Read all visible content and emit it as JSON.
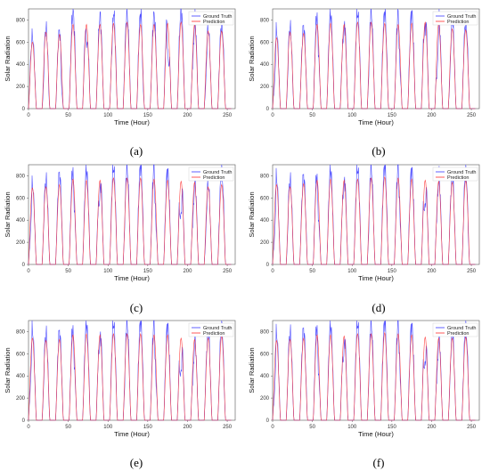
{
  "colors": {
    "ground_truth": "#3b3bff",
    "prediction": "#ff3030",
    "axes": "#555555"
  },
  "chart_data": [
    {
      "type": "line",
      "caption": "(a)",
      "xlabel": "Time (Hour)",
      "ylabel": "Solar Radiation",
      "xlim": [
        0,
        260
      ],
      "ylim": [
        0,
        900
      ],
      "xticks": [
        "0",
        "50",
        "100",
        "150",
        "200",
        "250"
      ],
      "yticks": [
        "0",
        "200",
        "400",
        "600",
        "800"
      ],
      "legend": {
        "placement": "top-right",
        "entries": [
          "Ground Truth",
          "Prediction"
        ]
      },
      "series": [
        {
          "name": "Ground Truth",
          "peaks": [
            650,
            720,
            700,
            880,
            860,
            830,
            880,
            870,
            860,
            840,
            880,
            900,
            860,
            720,
            780
          ],
          "dips": [
            0,
            0.45,
            0.55,
            0,
            0.3,
            0,
            0.2,
            0,
            0.4,
            0,
            0.5,
            0,
            0.3,
            0.4,
            0
          ]
        },
        {
          "name": "Prediction",
          "peaks": [
            600,
            690,
            670,
            760,
            760,
            760,
            770,
            780,
            760,
            760,
            770,
            780,
            760,
            700,
            700
          ]
        }
      ]
    },
    {
      "type": "line",
      "caption": "(b)",
      "xlabel": "Time (Hour)",
      "ylabel": "Solar Radiation",
      "xlim": [
        0,
        260
      ],
      "ylim": [
        0,
        900
      ],
      "xticks": [
        "0",
        "50",
        "100",
        "150",
        "200",
        "250"
      ],
      "yticks": [
        "0",
        "200",
        "400",
        "600",
        "800"
      ],
      "legend": {
        "placement": "top-right",
        "entries": [
          "Ground Truth",
          "Prediction"
        ]
      },
      "series": [
        {
          "name": "Ground Truth",
          "peaks": [
            700,
            730,
            740,
            870,
            860,
            850,
            870,
            880,
            880,
            860,
            870,
            900,
            860,
            800,
            800
          ],
          "dips": [
            0.5,
            0.3,
            0,
            0.3,
            0,
            0.2,
            0,
            0.3,
            0,
            0.4,
            0,
            0.2,
            0.5,
            0.3,
            0
          ]
        },
        {
          "name": "Prediction",
          "peaks": [
            640,
            690,
            680,
            760,
            770,
            760,
            780,
            780,
            770,
            760,
            770,
            780,
            770,
            720,
            710
          ]
        }
      ]
    },
    {
      "type": "line",
      "caption": "(c)",
      "xlabel": "Time (Hour)",
      "ylabel": "Solar Radiation",
      "xlim": [
        0,
        260
      ],
      "ylim": [
        0,
        900
      ],
      "xticks": [
        "0",
        "50",
        "100",
        "150",
        "200",
        "250"
      ],
      "yticks": [
        "0",
        "200",
        "400",
        "600",
        "800"
      ],
      "legend": {
        "placement": "top-right",
        "entries": [
          "Ground Truth",
          "Prediction"
        ]
      },
      "series": [
        {
          "name": "Ground Truth",
          "peaks": [
            720,
            760,
            820,
            880,
            860,
            850,
            880,
            880,
            900,
            880,
            850,
            850,
            800,
            720,
            850
          ],
          "dips": [
            0.4,
            0.2,
            0,
            0.3,
            0,
            0.3,
            0,
            0.2,
            0,
            0.4,
            0,
            0.5,
            0.3,
            0.3,
            0
          ]
        },
        {
          "name": "Prediction",
          "peaks": [
            690,
            700,
            720,
            770,
            760,
            760,
            780,
            780,
            780,
            770,
            760,
            750,
            740,
            700,
            720
          ]
        }
      ]
    },
    {
      "type": "line",
      "caption": "(d)",
      "xlabel": "Time (Hour)",
      "ylabel": "Solar Radiation",
      "xlim": [
        0,
        260
      ],
      "ylim": [
        0,
        900
      ],
      "xticks": [
        "0",
        "50",
        "100",
        "150",
        "200",
        "250"
      ],
      "yticks": [
        "0",
        "200",
        "400",
        "600",
        "800"
      ],
      "legend": {
        "placement": "top-right",
        "entries": [
          "Ground Truth",
          "Prediction"
        ]
      },
      "series": [
        {
          "name": "Ground Truth",
          "peaks": [
            780,
            760,
            800,
            840,
            860,
            850,
            870,
            880,
            900,
            880,
            860,
            850,
            820,
            800,
            840
          ],
          "dips": [
            0.5,
            0.3,
            0,
            0.4,
            0,
            0.2,
            0,
            0.3,
            0,
            0.3,
            0,
            0.4,
            0.2,
            0,
            0.3
          ]
        },
        {
          "name": "Prediction",
          "peaks": [
            720,
            700,
            730,
            760,
            770,
            760,
            770,
            780,
            790,
            780,
            770,
            760,
            750,
            740,
            760
          ]
        }
      ]
    },
    {
      "type": "line",
      "caption": "(e)",
      "xlabel": "Time (Hour)",
      "ylabel": "Solar Radiation",
      "xlim": [
        0,
        260
      ],
      "ylim": [
        0,
        900
      ],
      "xticks": [
        "0",
        "50",
        "100",
        "150",
        "200",
        "250"
      ],
      "yticks": [
        "0",
        "200",
        "400",
        "600",
        "800"
      ],
      "legend": {
        "placement": "top-right",
        "entries": [
          "Ground Truth",
          "Prediction"
        ]
      },
      "series": [
        {
          "name": "Ground Truth",
          "peaks": [
            810,
            780,
            800,
            860,
            880,
            860,
            880,
            890,
            900,
            880,
            860,
            820,
            760,
            800,
            860
          ],
          "dips": [
            0.4,
            0.3,
            0,
            0.3,
            0,
            0.2,
            0,
            0.3,
            0,
            0.4,
            0,
            0.5,
            0.3,
            0,
            0.2
          ]
        },
        {
          "name": "Prediction",
          "peaks": [
            740,
            720,
            730,
            770,
            780,
            770,
            780,
            780,
            780,
            770,
            770,
            740,
            730,
            740,
            760
          ]
        }
      ]
    },
    {
      "type": "line",
      "caption": "(f)",
      "xlabel": "Time (Hour)",
      "ylabel": "Solar Radiation",
      "xlim": [
        0,
        260
      ],
      "ylim": [
        0,
        900
      ],
      "xticks": [
        "0",
        "50",
        "100",
        "150",
        "200",
        "250"
      ],
      "yticks": [
        "0",
        "200",
        "400",
        "600",
        "800"
      ],
      "legend": {
        "placement": "top-right",
        "entries": [
          "Ground Truth",
          "Prediction"
        ]
      },
      "series": [
        {
          "name": "Ground Truth",
          "peaks": [
            780,
            790,
            820,
            880,
            860,
            850,
            880,
            880,
            900,
            880,
            860,
            820,
            800,
            800,
            840
          ],
          "dips": [
            0.5,
            0.2,
            0,
            0.4,
            0,
            0.3,
            0,
            0.2,
            0,
            0.3,
            0,
            0.4,
            0.3,
            0.2,
            0
          ]
        },
        {
          "name": "Prediction",
          "peaks": [
            720,
            730,
            740,
            770,
            770,
            760,
            780,
            780,
            790,
            780,
            770,
            750,
            740,
            740,
            750
          ]
        }
      ]
    }
  ]
}
